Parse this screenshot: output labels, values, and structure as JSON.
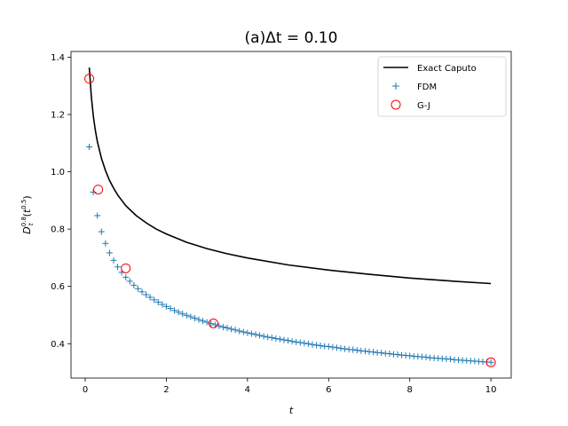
{
  "chart_data": {
    "type": "line",
    "title": "(a)Δt = 0.10",
    "xlabel": "t",
    "ylabel": "D_t^{0.8}(t^{0.5})",
    "xlim": [
      -0.35,
      10.5
    ],
    "ylim": [
      0.28,
      1.42
    ],
    "x_ticks": [
      0,
      2,
      4,
      6,
      8,
      10
    ],
    "y_ticks": [
      0.4,
      0.6,
      0.8,
      1.0,
      1.2,
      1.4
    ],
    "grid": false,
    "legend_position": "top-right",
    "series": [
      {
        "name": "Exact Caputo",
        "kind": "line",
        "color": "#000000",
        "x": [
          0.1,
          0.15,
          0.2,
          0.25,
          0.3,
          0.4,
          0.5,
          0.6,
          0.7,
          0.8,
          1.0,
          1.25,
          1.5,
          1.75,
          2.0,
          2.5,
          3.0,
          3.5,
          4.0,
          5.0,
          6.0,
          7.0,
          8.0,
          9.0,
          10.0
        ],
        "y": [
          1.364,
          1.263,
          1.196,
          1.145,
          1.106,
          1.047,
          1.004,
          0.97,
          0.943,
          0.919,
          0.882,
          0.848,
          0.822,
          0.8,
          0.783,
          0.754,
          0.732,
          0.714,
          0.699,
          0.675,
          0.657,
          0.642,
          0.629,
          0.619,
          0.61
        ]
      },
      {
        "name": "FDM",
        "kind": "scatter-plus",
        "color": "#1f77b4",
        "x": [
          0.1,
          0.2,
          0.3,
          0.4,
          0.5,
          0.6,
          0.7,
          0.8,
          0.9,
          1.0,
          1.1,
          1.2,
          1.3,
          1.4,
          1.5,
          1.6,
          1.7,
          1.8,
          1.9,
          2.0,
          2.1,
          2.2,
          2.3,
          2.4,
          2.5,
          2.6,
          2.7,
          2.8,
          2.9,
          3.0,
          3.1,
          3.2,
          3.3,
          3.4,
          3.5,
          3.6,
          3.7,
          3.8,
          3.9,
          4.0,
          4.1,
          4.2,
          4.3,
          4.4,
          4.5,
          4.6,
          4.7,
          4.8,
          4.9,
          5.0,
          5.1,
          5.2,
          5.3,
          5.4,
          5.5,
          5.6,
          5.7,
          5.8,
          5.9,
          6.0,
          6.1,
          6.2,
          6.3,
          6.4,
          6.5,
          6.6,
          6.7,
          6.8,
          6.9,
          7.0,
          7.1,
          7.2,
          7.3,
          7.4,
          7.5,
          7.6,
          7.7,
          7.8,
          7.9,
          8.0,
          8.1,
          8.2,
          8.3,
          8.4,
          8.5,
          8.6,
          8.7,
          8.8,
          8.9,
          9.0,
          9.1,
          9.2,
          9.3,
          9.4,
          9.5,
          9.6,
          9.7,
          9.8,
          9.9,
          10.0
        ],
        "y": [
          1.087,
          0.929,
          0.847,
          0.791,
          0.75,
          0.717,
          0.691,
          0.668,
          0.649,
          0.632,
          0.618,
          0.604,
          0.592,
          0.581,
          0.571,
          0.562,
          0.553,
          0.545,
          0.537,
          0.53,
          0.523,
          0.516,
          0.51,
          0.504,
          0.499,
          0.494,
          0.489,
          0.484,
          0.479,
          0.475,
          0.47,
          0.466,
          0.462,
          0.458,
          0.455,
          0.451,
          0.448,
          0.444,
          0.441,
          0.438,
          0.435,
          0.432,
          0.429,
          0.426,
          0.423,
          0.421,
          0.418,
          0.416,
          0.413,
          0.411,
          0.408,
          0.406,
          0.404,
          0.402,
          0.4,
          0.397,
          0.395,
          0.393,
          0.391,
          0.39,
          0.388,
          0.386,
          0.384,
          0.382,
          0.38,
          0.379,
          0.377,
          0.375,
          0.374,
          0.372,
          0.371,
          0.369,
          0.368,
          0.366,
          0.365,
          0.363,
          0.362,
          0.36,
          0.359,
          0.358,
          0.356,
          0.355,
          0.354,
          0.353,
          0.351,
          0.35,
          0.349,
          0.348,
          0.347,
          0.346,
          0.344,
          0.343,
          0.342,
          0.341,
          0.34,
          0.339,
          0.338,
          0.337,
          0.336,
          0.335
        ]
      },
      {
        "name": "G-J",
        "kind": "scatter-circle",
        "color": "#ff0000",
        "x": [
          0.1,
          0.32,
          1.0,
          3.16,
          10.0
        ],
        "y": [
          1.325,
          0.938,
          0.663,
          0.471,
          0.335
        ]
      }
    ]
  }
}
